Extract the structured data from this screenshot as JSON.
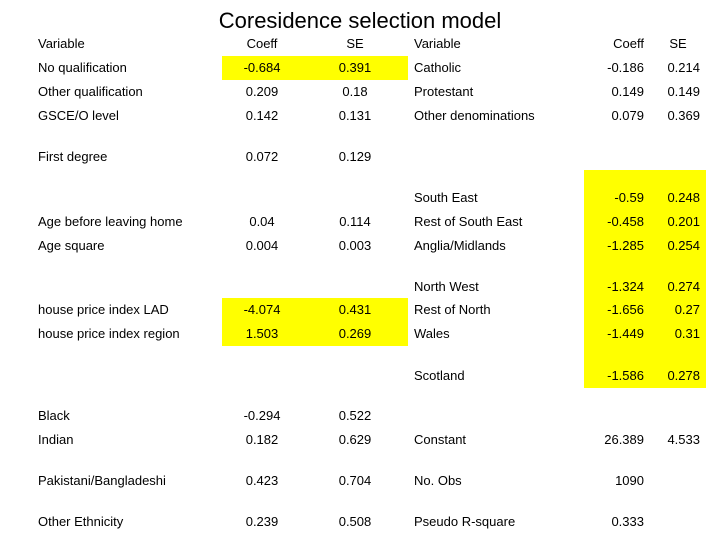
{
  "title": "Coresidence selection model",
  "left_table": {
    "headers": [
      "Variable",
      "Coeff",
      "SE"
    ],
    "rows": [
      {
        "variable": "No qualification",
        "coeff": "-0.684",
        "se": "0.391",
        "highlight": true
      },
      {
        "variable": "Other qualification",
        "coeff": "0.209",
        "se": "0.18",
        "highlight": false
      },
      {
        "variable": "GSCE/O level",
        "coeff": "0.142",
        "se": "0.131",
        "highlight": false
      },
      {
        "variable": "First degree",
        "coeff": "0.072",
        "se": "0.129",
        "highlight": false
      },
      {
        "variable": "Age before leaving home",
        "coeff": "0.04",
        "se": "0.114",
        "highlight": false
      },
      {
        "variable": "Age square",
        "coeff": "0.004",
        "se": "0.003",
        "highlight": false
      },
      {
        "variable": "house price index LAD",
        "coeff": "-4.074",
        "se": "0.431",
        "highlight": true
      },
      {
        "variable": "house price index region",
        "coeff": "1.503",
        "se": "0.269",
        "highlight": true
      },
      {
        "variable": "Black",
        "coeff": "-0.294",
        "se": "0.522",
        "highlight": false
      },
      {
        "variable": "Indian",
        "coeff": "0.182",
        "se": "0.629",
        "highlight": false
      },
      {
        "variable": "Pakistani/Bangladeshi",
        "coeff": "0.423",
        "se": "0.704",
        "highlight": false
      },
      {
        "variable": "Other Ethnicity",
        "coeff": "0.239",
        "se": "0.508",
        "highlight": false
      }
    ]
  },
  "right_table": {
    "headers": [
      "Variable",
      "Coeff",
      "SE"
    ],
    "rows": [
      {
        "variable": "Catholic",
        "coeff": "-0.186",
        "se": "0.214",
        "highlight": false
      },
      {
        "variable": "Protestant",
        "coeff": "0.149",
        "se": "0.149",
        "highlight": false
      },
      {
        "variable": "Other denominations",
        "coeff": "0.079",
        "se": "0.369",
        "highlight": false
      },
      {
        "variable": "South East",
        "coeff": "-0.59",
        "se": "0.248",
        "highlight": true
      },
      {
        "variable": "Rest of South East",
        "coeff": "-0.458",
        "se": "0.201",
        "highlight": true
      },
      {
        "variable": "Anglia/Midlands",
        "coeff": "-1.285",
        "se": "0.254",
        "highlight": true
      },
      {
        "variable": "North West",
        "coeff": "-1.324",
        "se": "0.274",
        "highlight": true
      },
      {
        "variable": "Rest of North",
        "coeff": "-1.656",
        "se": "0.27",
        "highlight": true
      },
      {
        "variable": "Wales",
        "coeff": "-1.449",
        "se": "0.31",
        "highlight": true
      },
      {
        "variable": "Scotland",
        "coeff": "-1.586",
        "se": "0.278",
        "highlight": true
      },
      {
        "variable": "Constant",
        "coeff": "26.389",
        "se": "4.533",
        "highlight": false
      },
      {
        "variable": "No. Obs",
        "coeff": "1090",
        "se": "",
        "highlight": false
      },
      {
        "variable": "Pseudo R-square",
        "coeff": "0.333",
        "se": "",
        "highlight": false
      }
    ]
  },
  "colors": {
    "highlight": "#ffff00",
    "background": "#ffffff",
    "text": "#000000"
  }
}
